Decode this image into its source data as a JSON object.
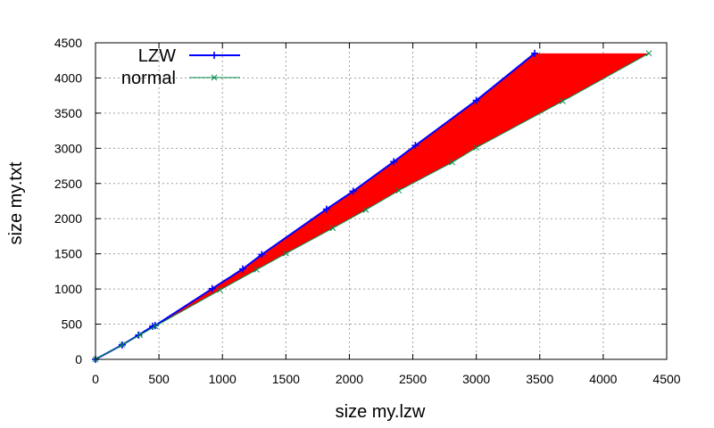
{
  "chart_data": {
    "type": "line",
    "title": "",
    "xlabel": "size my.lzw",
    "ylabel": "size my.txt",
    "xlim": [
      0,
      4500
    ],
    "ylim": [
      0,
      4500
    ],
    "x_ticks": [
      0,
      500,
      1000,
      1500,
      2000,
      2500,
      3000,
      3500,
      4000,
      4500
    ],
    "y_ticks": [
      0,
      500,
      1000,
      1500,
      2000,
      2500,
      3000,
      3500,
      4000,
      4500
    ],
    "grid": true,
    "legend_position": "top-left",
    "fill_between": {
      "color": "#ff0000",
      "between": [
        "LZW",
        "normal"
      ]
    },
    "series": [
      {
        "name": "LZW",
        "color": "#0000ff",
        "marker": "+",
        "points": [
          [
            0,
            0
          ],
          [
            210,
            205
          ],
          [
            340,
            345
          ],
          [
            450,
            470
          ],
          [
            470,
            480
          ],
          [
            920,
            1005
          ],
          [
            1160,
            1285
          ],
          [
            1310,
            1490
          ],
          [
            1820,
            2135
          ],
          [
            2030,
            2390
          ],
          [
            2350,
            2810
          ],
          [
            2520,
            3040
          ],
          [
            3000,
            3680
          ],
          [
            3460,
            4350
          ]
        ]
      },
      {
        "name": "normal",
        "color": "#008b4a",
        "marker": "x",
        "points": [
          [
            0,
            0
          ],
          [
            210,
            205
          ],
          [
            350,
            345
          ],
          [
            470,
            470
          ],
          [
            980,
            985
          ],
          [
            1270,
            1275
          ],
          [
            1500,
            1505
          ],
          [
            1870,
            1865
          ],
          [
            2130,
            2125
          ],
          [
            2390,
            2400
          ],
          [
            2810,
            2800
          ],
          [
            3000,
            3010
          ],
          [
            3680,
            3670
          ],
          [
            4360,
            4350
          ]
        ]
      }
    ]
  }
}
